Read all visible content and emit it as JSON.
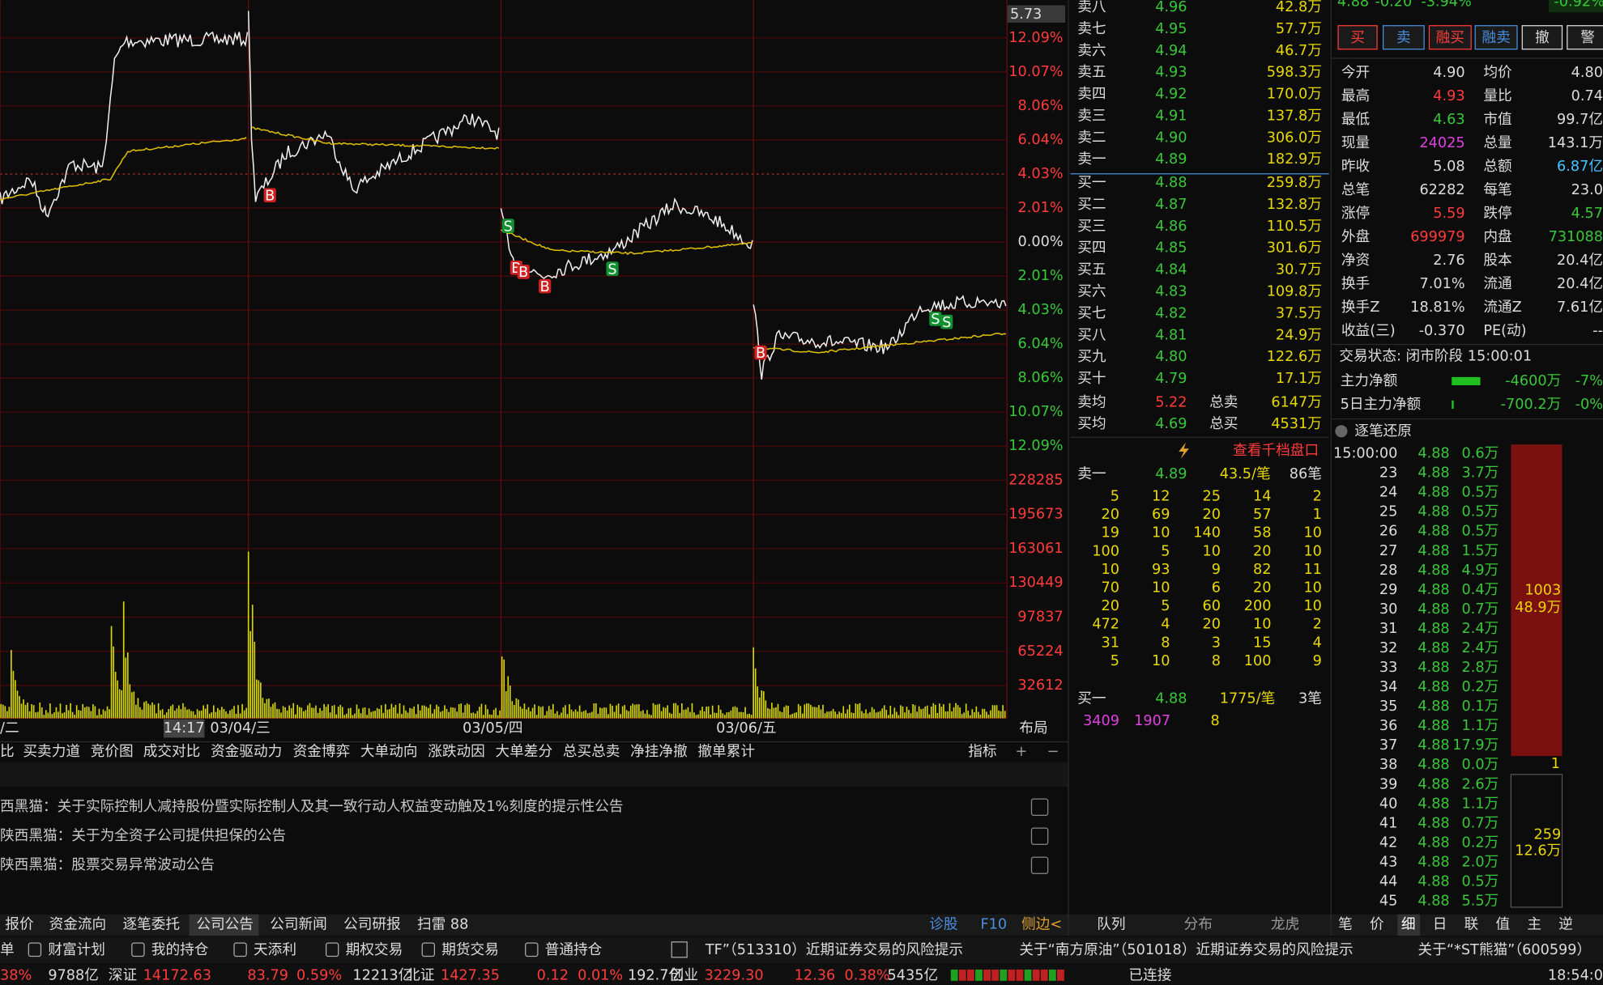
{
  "price_axis": {
    "top_value": "5.73",
    "labels": [
      "12.09%",
      "10.07%",
      "8.06%",
      "6.04%",
      "4.03%",
      "2.01%",
      "0.00%",
      "2.01%",
      "4.03%",
      "6.04%",
      "8.06%",
      "10.07%",
      "12.09%"
    ]
  },
  "volume_axis": [
    "228285",
    "195673",
    "163061",
    "130449",
    "97837",
    "65224",
    "32612"
  ],
  "time_axis": [
    "/二",
    "14:17",
    "03/04/三",
    "03/05/四",
    "03/06/五",
    "布局"
  ],
  "trade_markers": [
    "B",
    "S",
    "B",
    "B",
    "B",
    "S",
    "B",
    "S",
    "S"
  ],
  "indicator_tabs": [
    "比",
    "买卖力道",
    "竞价图",
    "成交对比",
    "资金驱动力",
    "资金博弈",
    "大单动向",
    "涨跌动因",
    "大单差分",
    "总买总卖",
    "净挂净撤",
    "撤单累计"
  ],
  "indicator_tools": [
    "指标",
    "+",
    "−"
  ],
  "announcements": [
    "西黑猫：关于实际控制人减持股份暨实际控制人及其一致行动人权益变动触及1%刻度的提示性公告",
    "陕西黑猫：关于为全资子公司提供担保的公告",
    "陕西黑猫：股票交易异常波动公告"
  ],
  "bottom_tabs": [
    "报价",
    "资金流向",
    "逐笔委托",
    "公司公告",
    "公司新闻",
    "公司研报",
    "扫雷 88"
  ],
  "bottom_links": [
    "诊股",
    "F10",
    "侧边<"
  ],
  "order_book": {
    "asks": [
      [
        "卖八",
        "4.96",
        "42.8万"
      ],
      [
        "卖七",
        "4.95",
        "57.7万"
      ],
      [
        "卖六",
        "4.94",
        "46.7万"
      ],
      [
        "卖五",
        "4.93",
        "598.3万"
      ],
      [
        "卖四",
        "4.92",
        "170.0万"
      ],
      [
        "卖三",
        "4.91",
        "137.8万"
      ],
      [
        "卖二",
        "4.90",
        "306.0万"
      ],
      [
        "卖一",
        "4.89",
        "182.9万"
      ]
    ],
    "bids": [
      [
        "买一",
        "4.88",
        "259.8万"
      ],
      [
        "买二",
        "4.87",
        "132.8万"
      ],
      [
        "买三",
        "4.86",
        "110.5万"
      ],
      [
        "买四",
        "4.85",
        "301.6万"
      ],
      [
        "买五",
        "4.84",
        "30.7万"
      ],
      [
        "买六",
        "4.83",
        "109.8万"
      ],
      [
        "买七",
        "4.82",
        "37.5万"
      ],
      [
        "买八",
        "4.81",
        "24.9万"
      ],
      [
        "买九",
        "4.80",
        "122.6万"
      ],
      [
        "买十",
        "4.79",
        "17.1万"
      ]
    ],
    "averages": [
      [
        "卖均",
        "5.22",
        "总卖",
        "6147万"
      ],
      [
        "买均",
        "4.69",
        "总买",
        "4531万"
      ]
    ]
  },
  "depth": {
    "link": "查看千档盘口",
    "sell_head": [
      "卖一",
      "4.89",
      "43.5/笔",
      "86笔"
    ],
    "sell_grid": [
      [
        "5",
        "12",
        "25",
        "14",
        "2"
      ],
      [
        "20",
        "69",
        "20",
        "57",
        "1"
      ],
      [
        "19",
        "10",
        "140",
        "58",
        "10"
      ],
      [
        "100",
        "5",
        "10",
        "20",
        "10"
      ],
      [
        "10",
        "93",
        "9",
        "82",
        "11"
      ],
      [
        "70",
        "10",
        "6",
        "20",
        "10"
      ],
      [
        "20",
        "5",
        "60",
        "200",
        "10"
      ],
      [
        "472",
        "4",
        "20",
        "10",
        "2"
      ],
      [
        "31",
        "8",
        "3",
        "15",
        "4"
      ],
      [
        "5",
        "10",
        "8",
        "100",
        "9"
      ]
    ],
    "buy_head": [
      "买一",
      "4.88",
      "1775/笔",
      "3笔"
    ],
    "buy_grid": [
      "3409",
      "1907",
      "8"
    ]
  },
  "queue_tabs": [
    "队列",
    "分布",
    "龙虎"
  ],
  "quote": {
    "price": "4.88",
    "change": "-0.20",
    "pct": "-3.94%",
    "side_pct": "-0.92%",
    "buttons": [
      "买",
      "卖",
      "融买",
      "融卖",
      "撤",
      "警"
    ],
    "stats": [
      [
        "今开",
        "4.90",
        "均价",
        "4.80"
      ],
      [
        "最高",
        "4.93",
        "量比",
        "0.74"
      ],
      [
        "最低",
        "4.63",
        "市值",
        "99.7亿"
      ],
      [
        "现量",
        "24025",
        "总量",
        "143.1万"
      ],
      [
        "昨收",
        "5.08",
        "总额",
        "6.87亿"
      ],
      [
        "总笔",
        "62282",
        "每笔",
        "23.0"
      ],
      [
        "涨停",
        "5.59",
        "跌停",
        "4.57"
      ],
      [
        "外盘",
        "699979",
        "内盘",
        "731088"
      ],
      [
        "净资",
        "2.76",
        "股本",
        "20.4亿"
      ],
      [
        "换手",
        "7.01%",
        "流通",
        "20.4亿"
      ],
      [
        "换手Z",
        "18.81%",
        "流通Z",
        "7.61亿"
      ],
      [
        "收益(三)",
        "-0.370",
        "PE(动)",
        "--"
      ]
    ],
    "status": "交易状态: 闭市阶段 15:00:01",
    "flows": [
      [
        "主力净额",
        "-4600万",
        "-7%"
      ],
      [
        "5日主力净额",
        "-700.2万",
        "-0%"
      ]
    ]
  },
  "ticks": {
    "title": "逐笔还原",
    "rows": [
      [
        "15:00:00",
        "4.88",
        "0.6万"
      ],
      [
        "23",
        "4.88",
        "3.7万"
      ],
      [
        "24",
        "4.88",
        "0.5万"
      ],
      [
        "25",
        "4.88",
        "0.5万"
      ],
      [
        "26",
        "4.88",
        "0.5万"
      ],
      [
        "27",
        "4.88",
        "1.5万"
      ],
      [
        "28",
        "4.88",
        "4.9万"
      ],
      [
        "29",
        "4.88",
        "0.4万"
      ],
      [
        "30",
        "4.88",
        "0.7万"
      ],
      [
        "31",
        "4.88",
        "2.4万"
      ],
      [
        "32",
        "4.88",
        "2.4万"
      ],
      [
        "33",
        "4.88",
        "2.8万"
      ],
      [
        "34",
        "4.88",
        "0.2万"
      ],
      [
        "35",
        "4.88",
        "0.1万"
      ],
      [
        "36",
        "4.88",
        "1.1万"
      ],
      [
        "37",
        "4.88",
        "17.9万"
      ],
      [
        "38",
        "4.88",
        "0.0万"
      ],
      [
        "39",
        "4.88",
        "2.6万"
      ],
      [
        "40",
        "4.88",
        "1.1万"
      ],
      [
        "41",
        "4.88",
        "0.7万"
      ],
      [
        "42",
        "4.88",
        "0.2万"
      ],
      [
        "43",
        "4.88",
        "2.0万"
      ],
      [
        "44",
        "4.88",
        "0.5万"
      ],
      [
        "45",
        "4.88",
        "5.5万"
      ]
    ],
    "buy_block": [
      "1003",
      "48.9万"
    ],
    "sell_block": [
      "259",
      "12.6万"
    ],
    "divider": "1"
  },
  "right_tabs": [
    "笔",
    "价",
    "细",
    "日",
    "联",
    "值",
    "主",
    "逆"
  ],
  "taskbar": [
    "单",
    "财富计划",
    "我的持仓",
    "天添利",
    "期权交易",
    "期货交易",
    "普通持仓"
  ],
  "news_ticker": [
    "TF”（513310）近期证券交易的风险提示",
    "关于“南方原油”（501018）近期证券交易的风险提示",
    "关于“*ST熊猫”（600599）"
  ],
  "market_bar": [
    "38%",
    "9788亿",
    "深证",
    "14172.63",
    "83.79",
    "0.59%",
    "12213亿",
    "北证",
    "1427.35",
    "0.12",
    "0.01%",
    "192.7亿",
    "创业",
    "3229.30",
    "12.36",
    "0.38%",
    "5435亿"
  ],
  "connection": "已连接",
  "clock": "18:54:0"
}
